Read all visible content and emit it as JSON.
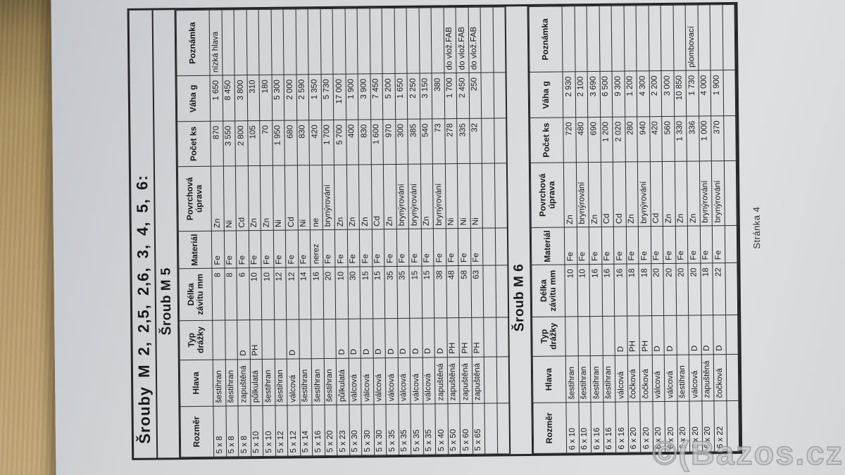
{
  "photo": {
    "watermark": "©(Bazos.cz"
  },
  "document": {
    "title": "Šrouby M 2, 2,5, 2,6, 3, 4, 5, 6:",
    "footer": "Stránka 4",
    "columns": [
      "Rozměr",
      "Hlava",
      "Typ drážky",
      "Délka závitu mm",
      "Materiál",
      "Povrchová úprava",
      "Počet ks",
      "Váha g",
      "Poznámka"
    ],
    "tables": [
      {
        "title": "Šroub M 5",
        "empty_rows": 2,
        "rows": [
          [
            "5 x 8",
            "šestihran",
            "",
            "8",
            "Fe",
            "Zn",
            "870",
            "1 650",
            "nízká hlava"
          ],
          [
            "5 x 8",
            "šestihran",
            "",
            "8",
            "Fe",
            "Ni",
            "3 550",
            "8 450",
            ""
          ],
          [
            "5 x 8",
            "zapuštěná",
            "D",
            "6",
            "Fe",
            "Cd",
            "2 800",
            "3 800",
            ""
          ],
          [
            "5 x 10",
            "půlkulatá",
            "PH",
            "10",
            "Fe",
            "Zn",
            "105",
            "310",
            ""
          ],
          [
            "5 x 10",
            "šestihran",
            "",
            "10",
            "Fe",
            "Zn",
            "70",
            "180",
            ""
          ],
          [
            "5 x 12",
            "šestihran",
            "",
            "12",
            "Fe",
            "Ni",
            "1 950",
            "5 300",
            ""
          ],
          [
            "5 x 12",
            "válcová",
            "D",
            "12",
            "Fe",
            "Cd",
            "680",
            "2 000",
            ""
          ],
          [
            "5 x 14",
            "šestihran",
            "",
            "14",
            "Fe",
            "Ni",
            "830",
            "2 590",
            ""
          ],
          [
            "5 x 16",
            "šestihran",
            "",
            "16",
            "nerez",
            "ne",
            "420",
            "1 350",
            ""
          ],
          [
            "5 x 20",
            "šestihran",
            "",
            "20",
            "Fe",
            "brynýrování",
            "1 700",
            "5 730",
            ""
          ],
          [
            "5 x 23",
            "půlkulatá",
            "D",
            "10",
            "Fe",
            "Zn",
            "5 700",
            "17 000",
            ""
          ],
          [
            "5 x 30",
            "válcová",
            "D",
            "30",
            "Fe",
            "Zn",
            "400",
            "1 900",
            ""
          ],
          [
            "5 x 30",
            "válcová",
            "D",
            "15",
            "Fe",
            "Zn",
            "830",
            "3 900",
            ""
          ],
          [
            "5 x 30",
            "válcová",
            "D",
            "15",
            "Fe",
            "Cd",
            "1 600",
            "7 450",
            ""
          ],
          [
            "5 x 35",
            "válcová",
            "D",
            "35",
            "Fe",
            "Zn",
            "970",
            "5 200",
            ""
          ],
          [
            "5 x 35",
            "válcová",
            "D",
            "35",
            "Fe",
            "brynýrování",
            "300",
            "1 650",
            ""
          ],
          [
            "5 x 35",
            "válcová",
            "D",
            "15",
            "Fe",
            "brynýrování",
            "385",
            "2 250",
            ""
          ],
          [
            "5 x 35",
            "válcová",
            "D",
            "15",
            "Fe",
            "Zn",
            "540",
            "3 150",
            ""
          ],
          [
            "5 x 40",
            "zapuštěná",
            "D",
            "38",
            "Fe",
            "brynýrování",
            "73",
            "380",
            ""
          ],
          [
            "5 x 50",
            "zapuštěná",
            "PH",
            "48",
            "Fe",
            "Ni",
            "278",
            "1 700",
            "do vlož.FAB"
          ],
          [
            "5 x 60",
            "zapuštěná",
            "PH",
            "58",
            "Fe",
            "Ni",
            "335",
            "2 450",
            "do vlož.FAB"
          ],
          [
            "5 x 65",
            "zapuštěná",
            "PH",
            "63",
            "Fe",
            "Ni",
            "32",
            "250",
            "do vlož.FAB"
          ]
        ]
      },
      {
        "title": "Šroub M 6",
        "empty_rows": 1,
        "rows": [
          [
            "6 x 10",
            "šestihran",
            "",
            "10",
            "Fe",
            "Zn",
            "720",
            "2 930",
            ""
          ],
          [
            "6 x 10",
            "šestihran",
            "",
            "10",
            "Fe",
            "brynýrování",
            "480",
            "2 100",
            ""
          ],
          [
            "6 x 16",
            "šestihran",
            "",
            "16",
            "Fe",
            "Zn",
            "690",
            "3 690",
            ""
          ],
          [
            "6 x 16",
            "šestihran",
            "",
            "16",
            "Fe",
            "Cd",
            "1 200",
            "6 500",
            ""
          ],
          [
            "6 x 16",
            "válcová",
            "D",
            "16",
            "Fe",
            "Cd",
            "2 020",
            "9 300",
            ""
          ],
          [
            "6 x 20",
            "čočková",
            "PH",
            "18",
            "Fe",
            "Zn",
            "280",
            "1 200",
            ""
          ],
          [
            "6 x 20",
            "čočková",
            "PH",
            "18",
            "Fe",
            "brynýrování",
            "940",
            "4 300",
            ""
          ],
          [
            "6 x 20",
            "válcová",
            "D",
            "20",
            "Fe",
            "Cd",
            "420",
            "2 200",
            ""
          ],
          [
            "6 x 20",
            "válcová",
            "D",
            "20",
            "Fe",
            "Zn",
            "560",
            "3 000",
            ""
          ],
          [
            "6 x 20",
            "šestihran",
            "",
            "20",
            "Fe",
            "Zn",
            "1 330",
            "10 850",
            ""
          ],
          [
            "6 x 20",
            "válcová",
            "D",
            "20",
            "Fe",
            "Zn",
            "336",
            "1 730",
            "plombovací"
          ],
          [
            "6 x 20",
            "zapuštěná",
            "D",
            "18",
            "Fe",
            "brynýrování",
            "1 000",
            "4 000",
            ""
          ],
          [
            "6 x 22",
            "čočková",
            "D",
            "22",
            "Fe",
            "brynýrování",
            "370",
            "1 900",
            ""
          ]
        ]
      }
    ]
  }
}
